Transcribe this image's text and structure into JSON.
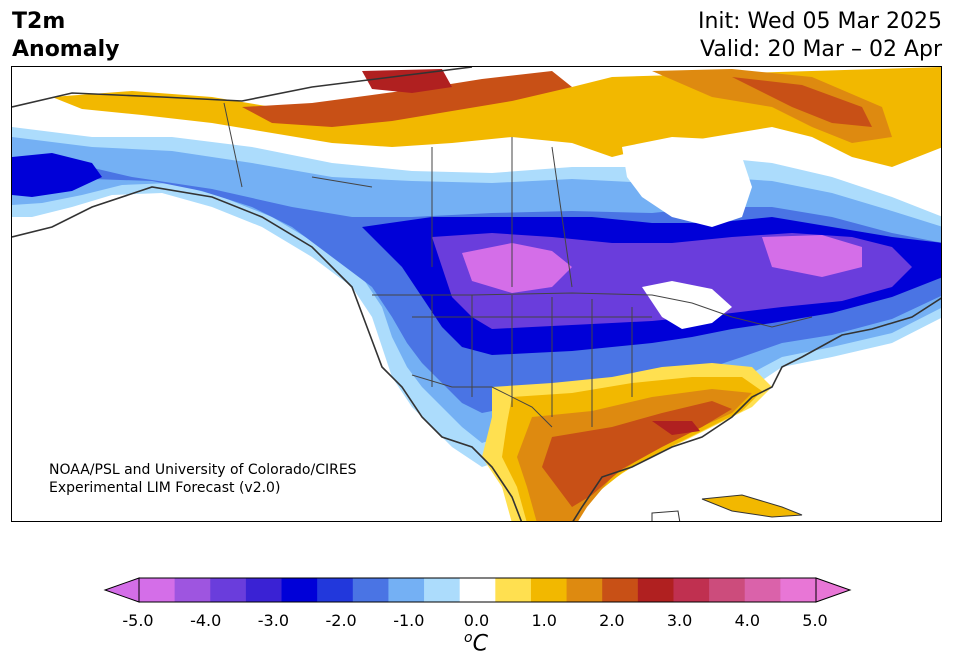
{
  "header": {
    "variable": "T2m",
    "field": "Anomaly",
    "init": "Init: Wed 05 Mar 2025",
    "valid": "Valid: 20 Mar – 02 Apr"
  },
  "credit": {
    "line1": "NOAA/PSL and University of Colorado/CIRES",
    "line2": "Experimental LIM Forecast (v2.0)"
  },
  "colorbar": {
    "unit_superscript": "o",
    "unit_main": "C",
    "ticks": [
      "-5.0",
      "-4.0",
      "-3.0",
      "-2.0",
      "-1.0",
      "0.0",
      "1.0",
      "2.0",
      "3.0",
      "4.0",
      "5.0"
    ],
    "levels": [
      -5.0,
      -4.5,
      -4.0,
      -3.5,
      -3.0,
      -2.5,
      -2.0,
      -1.5,
      -1.0,
      -0.5,
      0.5,
      1.0,
      1.5,
      2.0,
      2.5,
      3.0,
      3.5,
      4.0,
      4.5,
      5.0
    ],
    "colors": [
      "#d46ee8",
      "#9e55e0",
      "#6a3ddc",
      "#3a22d4",
      "#0000d8",
      "#2238dc",
      "#4a74e4",
      "#74b0f4",
      "#acdcfc",
      "#ffffff",
      "#ffe050",
      "#f2b800",
      "#de8a10",
      "#c85016",
      "#b02020",
      "#c03050",
      "#cc4c7c",
      "#da62aa",
      "#e876d6"
    ],
    "under_color": "#d46ee8",
    "over_color": "#e876d6"
  },
  "map": {
    "region": "North America",
    "palette": {
      "cold_strong": "#0000d8",
      "cold_purple": "#6a3ddc",
      "cold_max": "#d46ee8",
      "cool": "#4a74e4",
      "cool_light": "#74b0f4",
      "cool_pale": "#acdcfc",
      "neutral": "#ffffff",
      "warm_light": "#ffe050",
      "warm": "#f2b800",
      "warm_orange": "#de8a10",
      "warm_strong": "#c85016",
      "hot": "#b02020"
    }
  }
}
